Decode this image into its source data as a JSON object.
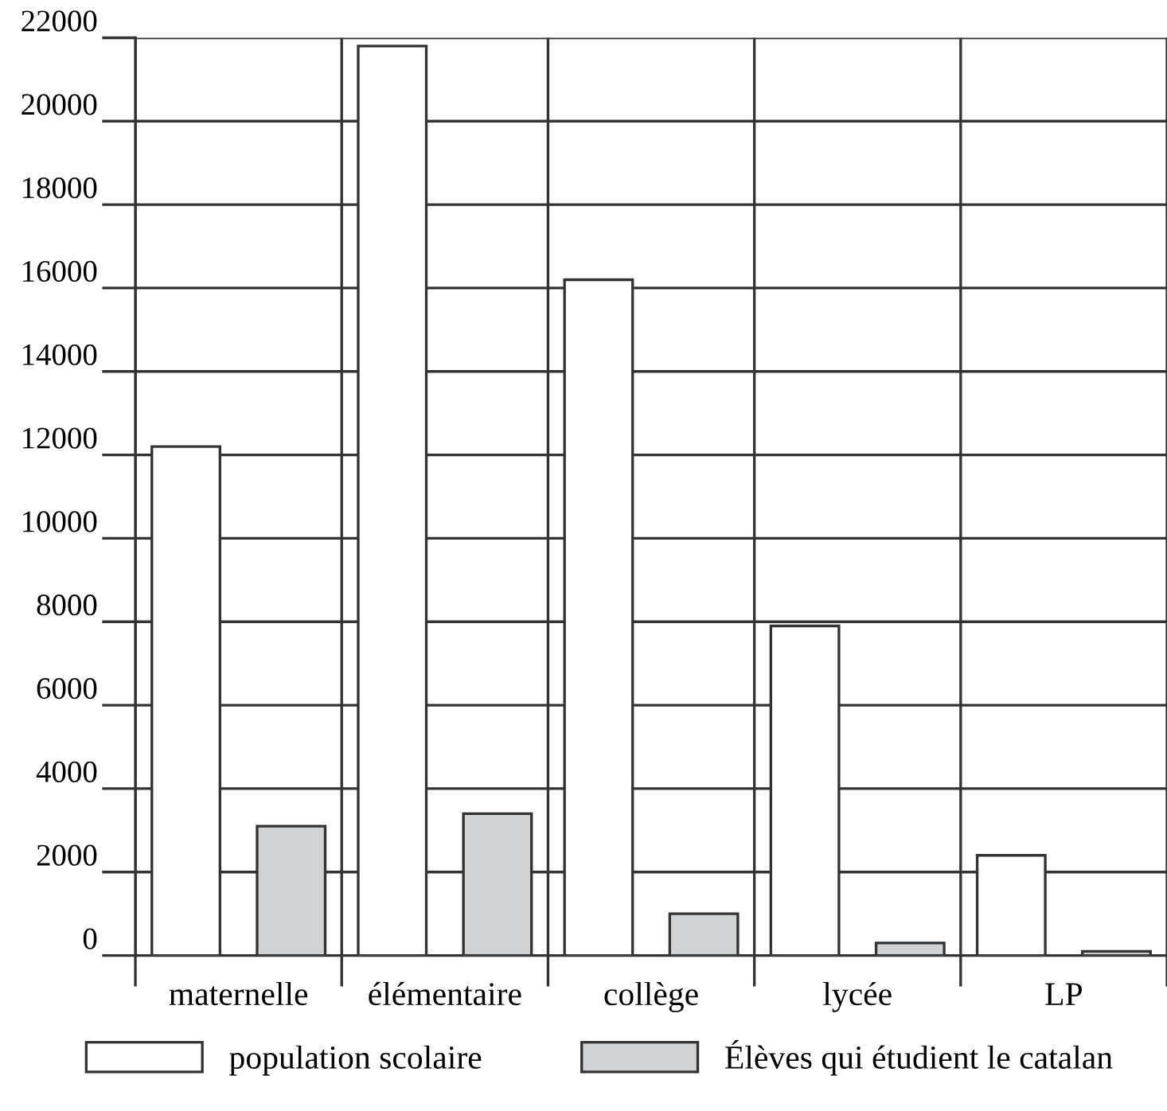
{
  "chart_data": {
    "type": "bar",
    "categories": [
      "maternelle",
      "élémentaire",
      "collège",
      "lycée",
      "LP"
    ],
    "series": [
      {
        "name": "population scolaire",
        "color": "#ffffff",
        "values": [
          12200,
          21800,
          16200,
          7900,
          2400
        ]
      },
      {
        "name": "Élèves qui étudient le catalan",
        "color": "#d1d2d4",
        "values": [
          3100,
          3400,
          1000,
          300,
          100
        ]
      }
    ],
    "ylim": [
      0,
      22000
    ],
    "yticks": [
      0,
      2000,
      4000,
      6000,
      8000,
      10000,
      12000,
      14000,
      16000,
      18000,
      20000,
      22000
    ],
    "grid": true,
    "legend": "bottom"
  }
}
